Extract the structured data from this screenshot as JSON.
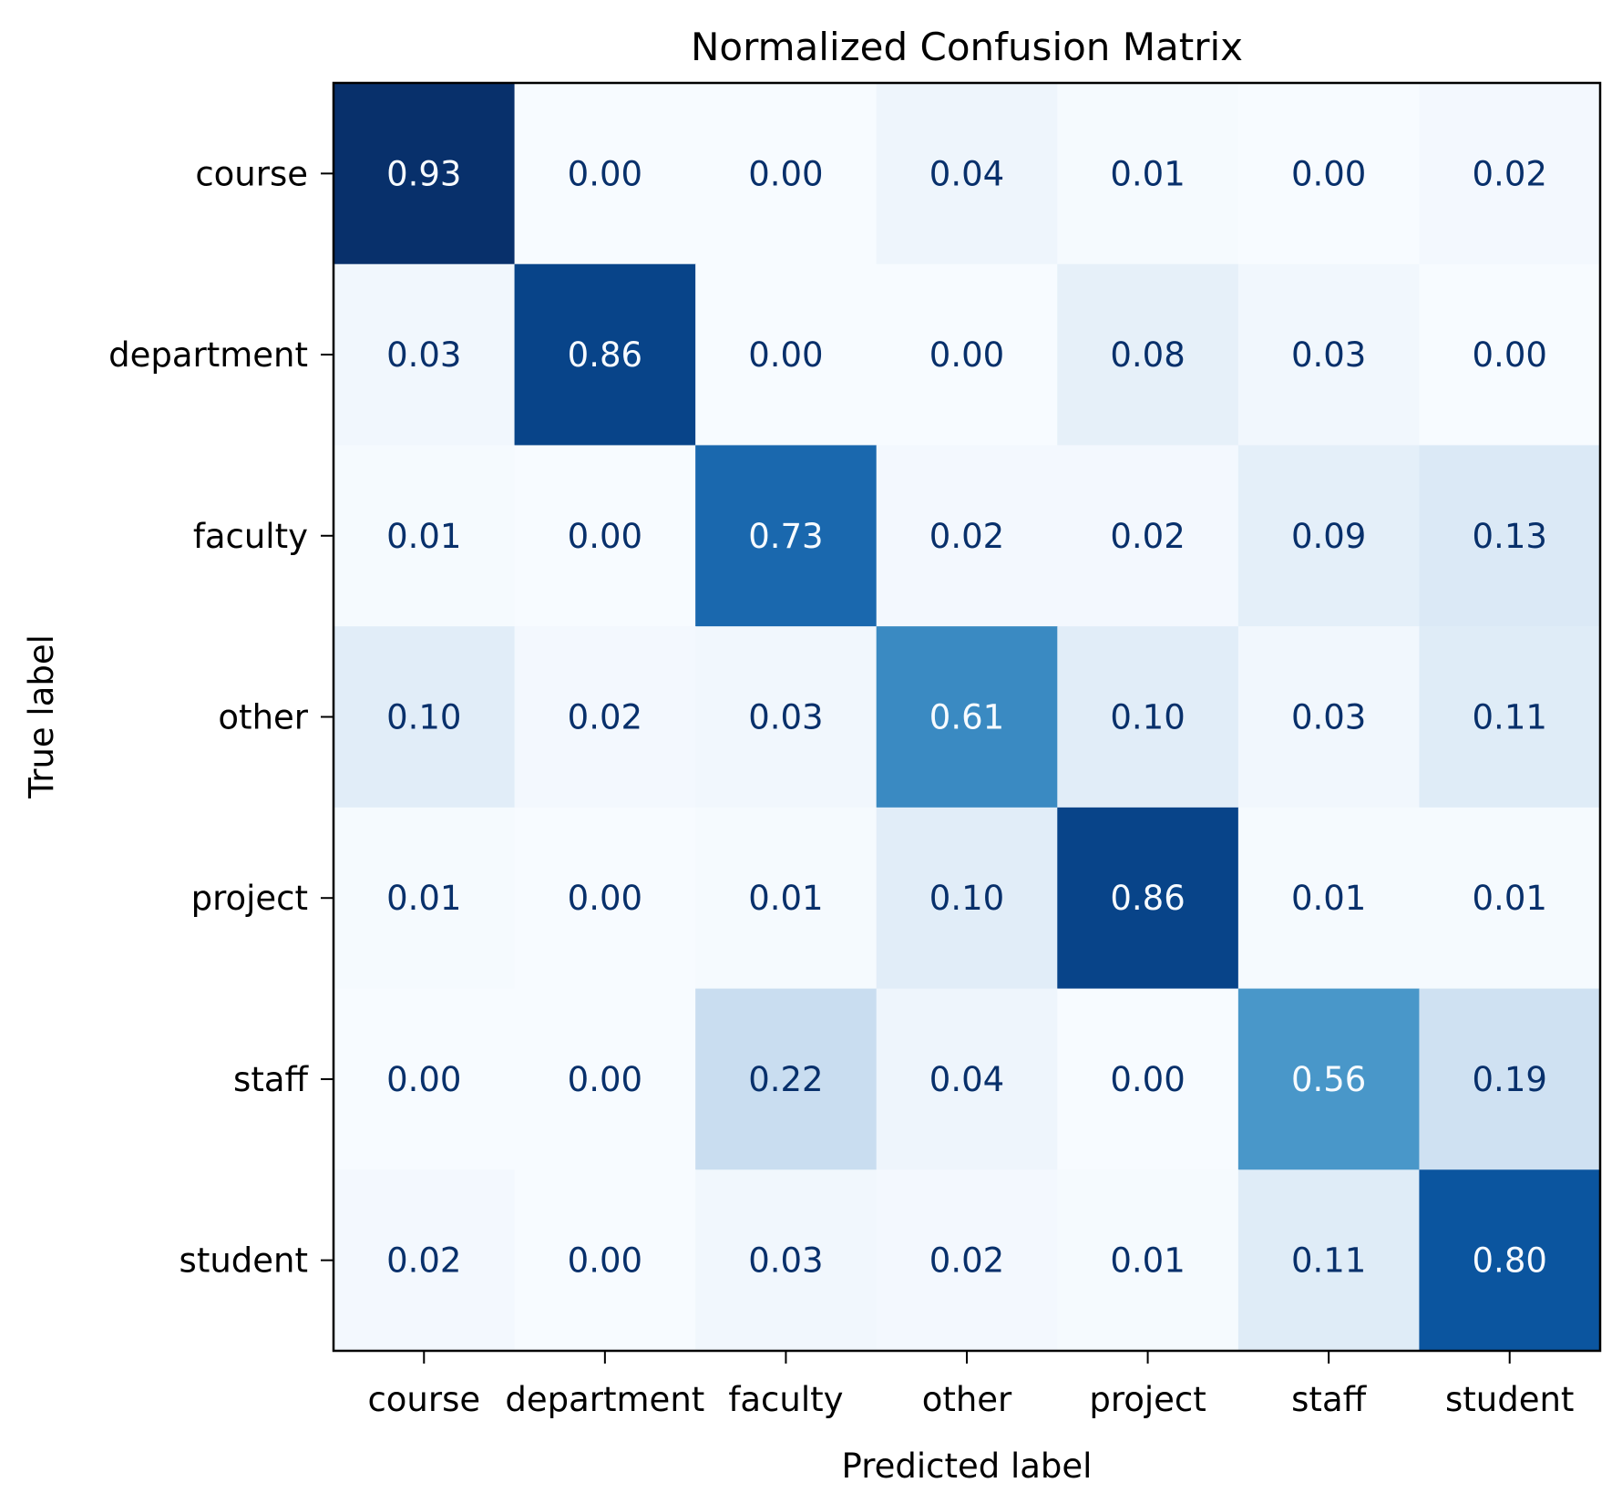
{
  "chart_data": {
    "type": "heatmap",
    "title": "Normalized Confusion Matrix",
    "xlabel": "Predicted label",
    "ylabel": "True label",
    "x_categories": [
      "course",
      "department",
      "faculty",
      "other",
      "project",
      "staff",
      "student"
    ],
    "y_categories": [
      "course",
      "department",
      "faculty",
      "other",
      "project",
      "staff",
      "student"
    ],
    "values": [
      [
        0.93,
        0.0,
        0.0,
        0.04,
        0.01,
        0.0,
        0.02
      ],
      [
        0.03,
        0.86,
        0.0,
        0.0,
        0.08,
        0.03,
        0.0
      ],
      [
        0.01,
        0.0,
        0.73,
        0.02,
        0.02,
        0.09,
        0.13
      ],
      [
        0.1,
        0.02,
        0.03,
        0.61,
        0.1,
        0.03,
        0.11
      ],
      [
        0.01,
        0.0,
        0.01,
        0.1,
        0.86,
        0.01,
        0.01
      ],
      [
        0.0,
        0.0,
        0.22,
        0.04,
        0.0,
        0.56,
        0.19
      ],
      [
        0.02,
        0.0,
        0.03,
        0.02,
        0.01,
        0.11,
        0.8
      ]
    ],
    "value_format": "0.00",
    "colormap": "Blues",
    "color_range": [
      0,
      0.93
    ],
    "colorbar": false,
    "grid": false
  }
}
